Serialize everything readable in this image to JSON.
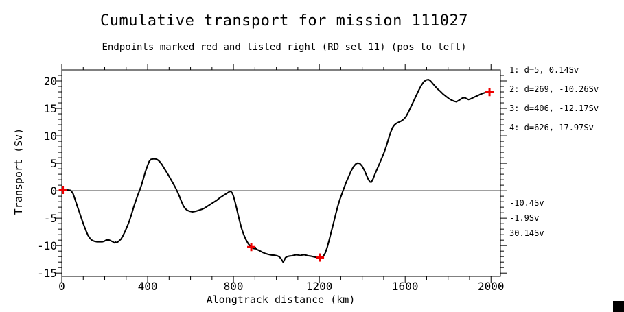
{
  "chart_data": {
    "type": "line",
    "title": "Cumulative transport for mission 111027",
    "subtitle": "Endpoints marked red and listed right (RD set 11) (pos to left)",
    "xlabel": "Alongtrack distance (km)",
    "ylabel": "Transport (Sv)",
    "xlim": [
      0,
      2044
    ],
    "ylim": [
      -15.6,
      22.0
    ],
    "xticks": [
      0,
      400,
      800,
      1200,
      1600,
      2000
    ],
    "yticks": [
      -15,
      -10,
      -5,
      0,
      5,
      10,
      15,
      20
    ],
    "x_minor_step": 100,
    "y_minor_step": 1,
    "zero_line": true,
    "line_color": "#000000",
    "marker_color": "#ee0000",
    "series": [
      {
        "name": "cumulative transport",
        "points": [
          [
            0,
            0.14
          ],
          [
            15,
            0.15
          ],
          [
            30,
            0.12
          ],
          [
            42,
            0.05
          ],
          [
            52,
            -0.5
          ],
          [
            62,
            -1.6
          ],
          [
            72,
            -2.8
          ],
          [
            82,
            -3.9
          ],
          [
            92,
            -5.1
          ],
          [
            102,
            -6.2
          ],
          [
            112,
            -7.2
          ],
          [
            122,
            -8.1
          ],
          [
            132,
            -8.7
          ],
          [
            142,
            -9.05
          ],
          [
            152,
            -9.2
          ],
          [
            164,
            -9.3
          ],
          [
            176,
            -9.3
          ],
          [
            188,
            -9.3
          ],
          [
            198,
            -9.2
          ],
          [
            206,
            -9.0
          ],
          [
            214,
            -8.95
          ],
          [
            222,
            -9.0
          ],
          [
            230,
            -9.15
          ],
          [
            238,
            -9.3
          ],
          [
            245,
            -9.5
          ],
          [
            250,
            -9.35
          ],
          [
            256,
            -9.45
          ],
          [
            262,
            -9.3
          ],
          [
            268,
            -9.1
          ],
          [
            276,
            -8.8
          ],
          [
            285,
            -8.2
          ],
          [
            295,
            -7.4
          ],
          [
            305,
            -6.5
          ],
          [
            315,
            -5.5
          ],
          [
            325,
            -4.3
          ],
          [
            335,
            -3.0
          ],
          [
            345,
            -1.8
          ],
          [
            355,
            -0.7
          ],
          [
            363,
            0.1
          ],
          [
            372,
            1.1
          ],
          [
            381,
            2.3
          ],
          [
            390,
            3.5
          ],
          [
            399,
            4.5
          ],
          [
            407,
            5.3
          ],
          [
            415,
            5.7
          ],
          [
            425,
            5.8
          ],
          [
            436,
            5.8
          ],
          [
            446,
            5.65
          ],
          [
            456,
            5.3
          ],
          [
            466,
            4.8
          ],
          [
            477,
            4.1
          ],
          [
            488,
            3.4
          ],
          [
            499,
            2.7
          ],
          [
            509,
            2.0
          ],
          [
            519,
            1.3
          ],
          [
            529,
            0.6
          ],
          [
            539,
            -0.2
          ],
          [
            549,
            -1.1
          ],
          [
            558,
            -2.0
          ],
          [
            567,
            -2.8
          ],
          [
            576,
            -3.3
          ],
          [
            586,
            -3.6
          ],
          [
            597,
            -3.75
          ],
          [
            608,
            -3.85
          ],
          [
            618,
            -3.8
          ],
          [
            628,
            -3.7
          ],
          [
            640,
            -3.55
          ],
          [
            652,
            -3.4
          ],
          [
            664,
            -3.2
          ],
          [
            676,
            -2.9
          ],
          [
            688,
            -2.6
          ],
          [
            700,
            -2.3
          ],
          [
            712,
            -2.0
          ],
          [
            724,
            -1.7
          ],
          [
            736,
            -1.3
          ],
          [
            748,
            -1.0
          ],
          [
            760,
            -0.7
          ],
          [
            770,
            -0.45
          ],
          [
            780,
            -0.2
          ],
          [
            787,
            -0.1
          ],
          [
            794,
            -0.4
          ],
          [
            800,
            -1.0
          ],
          [
            807,
            -2.0
          ],
          [
            814,
            -3.1
          ],
          [
            821,
            -4.3
          ],
          [
            829,
            -5.6
          ],
          [
            838,
            -6.9
          ],
          [
            848,
            -8.0
          ],
          [
            858,
            -8.9
          ],
          [
            868,
            -9.6
          ],
          [
            876,
            -10.0
          ],
          [
            883,
            -10.26
          ],
          [
            891,
            -10.45
          ],
          [
            897,
            -10.55
          ],
          [
            902,
            -10.35
          ],
          [
            907,
            -10.7
          ],
          [
            915,
            -10.8
          ],
          [
            925,
            -11.0
          ],
          [
            937,
            -11.25
          ],
          [
            950,
            -11.45
          ],
          [
            963,
            -11.6
          ],
          [
            977,
            -11.7
          ],
          [
            991,
            -11.75
          ],
          [
            1004,
            -11.85
          ],
          [
            1014,
            -12.05
          ],
          [
            1022,
            -12.4
          ],
          [
            1028,
            -12.8
          ],
          [
            1032,
            -13.05
          ],
          [
            1037,
            -12.6
          ],
          [
            1042,
            -12.2
          ],
          [
            1050,
            -12.0
          ],
          [
            1060,
            -11.9
          ],
          [
            1072,
            -11.85
          ],
          [
            1083,
            -11.75
          ],
          [
            1092,
            -11.65
          ],
          [
            1102,
            -11.7
          ],
          [
            1111,
            -11.8
          ],
          [
            1120,
            -11.7
          ],
          [
            1129,
            -11.65
          ],
          [
            1139,
            -11.75
          ],
          [
            1149,
            -11.85
          ],
          [
            1160,
            -11.9
          ],
          [
            1171,
            -12.0
          ],
          [
            1182,
            -12.1
          ],
          [
            1193,
            -12.15
          ],
          [
            1203,
            -12.17
          ],
          [
            1212,
            -12.1
          ],
          [
            1220,
            -11.85
          ],
          [
            1228,
            -11.3
          ],
          [
            1237,
            -10.3
          ],
          [
            1246,
            -9.0
          ],
          [
            1255,
            -7.6
          ],
          [
            1265,
            -6.1
          ],
          [
            1275,
            -4.5
          ],
          [
            1285,
            -3.0
          ],
          [
            1295,
            -1.7
          ],
          [
            1305,
            -0.6
          ],
          [
            1315,
            0.5
          ],
          [
            1325,
            1.5
          ],
          [
            1336,
            2.5
          ],
          [
            1347,
            3.5
          ],
          [
            1358,
            4.3
          ],
          [
            1369,
            4.85
          ],
          [
            1379,
            5.05
          ],
          [
            1389,
            4.95
          ],
          [
            1399,
            4.5
          ],
          [
            1409,
            3.8
          ],
          [
            1419,
            2.9
          ],
          [
            1428,
            2.1
          ],
          [
            1436,
            1.6
          ],
          [
            1442,
            1.55
          ],
          [
            1450,
            2.1
          ],
          [
            1459,
            3.0
          ],
          [
            1470,
            4.0
          ],
          [
            1481,
            5.0
          ],
          [
            1492,
            6.0
          ],
          [
            1502,
            7.0
          ],
          [
            1512,
            8.1
          ],
          [
            1522,
            9.4
          ],
          [
            1532,
            10.6
          ],
          [
            1541,
            11.5
          ],
          [
            1550,
            12.0
          ],
          [
            1560,
            12.3
          ],
          [
            1571,
            12.5
          ],
          [
            1582,
            12.7
          ],
          [
            1593,
            13.0
          ],
          [
            1604,
            13.5
          ],
          [
            1615,
            14.3
          ],
          [
            1626,
            15.2
          ],
          [
            1638,
            16.2
          ],
          [
            1650,
            17.2
          ],
          [
            1662,
            18.2
          ],
          [
            1674,
            19.1
          ],
          [
            1686,
            19.8
          ],
          [
            1697,
            20.15
          ],
          [
            1708,
            20.25
          ],
          [
            1718,
            20.0
          ],
          [
            1729,
            19.5
          ],
          [
            1740,
            19.0
          ],
          [
            1752,
            18.5
          ],
          [
            1764,
            18.1
          ],
          [
            1777,
            17.6
          ],
          [
            1790,
            17.2
          ],
          [
            1803,
            16.8
          ],
          [
            1816,
            16.5
          ],
          [
            1828,
            16.3
          ],
          [
            1838,
            16.2
          ],
          [
            1848,
            16.4
          ],
          [
            1858,
            16.65
          ],
          [
            1868,
            16.9
          ],
          [
            1878,
            16.95
          ],
          [
            1887,
            16.75
          ],
          [
            1895,
            16.6
          ],
          [
            1904,
            16.7
          ],
          [
            1914,
            16.9
          ],
          [
            1925,
            17.1
          ],
          [
            1937,
            17.3
          ],
          [
            1950,
            17.55
          ],
          [
            1963,
            17.75
          ],
          [
            1976,
            17.9
          ],
          [
            1988,
            18.0
          ],
          [
            1998,
            17.97
          ]
        ]
      }
    ],
    "markers": [
      {
        "x": 5,
        "y": 0.14
      },
      {
        "x": 883,
        "y": -10.26
      },
      {
        "x": 1203,
        "y": -12.17
      },
      {
        "x": 1993,
        "y": 17.97
      }
    ]
  },
  "annotations": {
    "endpoints": [
      "1: d=5, 0.14Sv",
      "2: d=269, -10.26Sv",
      "3: d=406, -12.17Sv",
      "4: d=626, 17.97Sv"
    ],
    "totals": [
      "-10.4Sv",
      "-1.9Sv",
      "30.14Sv"
    ]
  }
}
